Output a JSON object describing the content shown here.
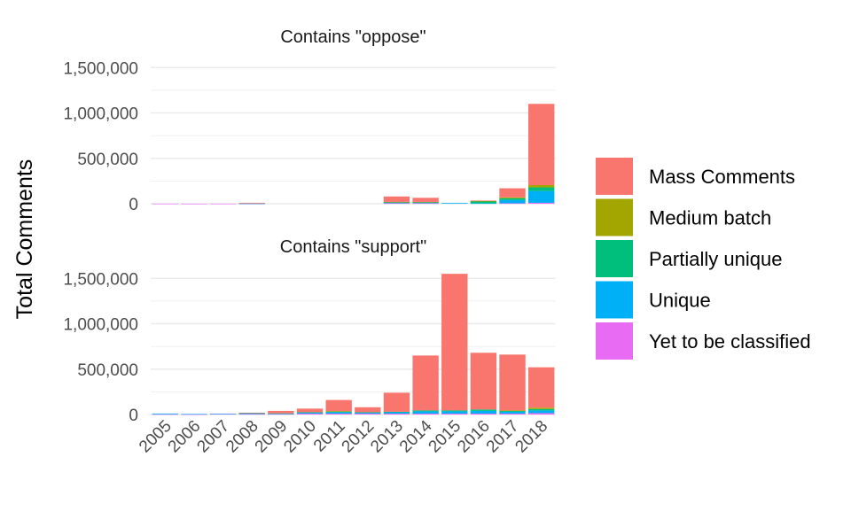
{
  "chart_data": [
    {
      "type": "bar",
      "stacked": true,
      "title": "Contains \"oppose\"",
      "ylabel": "Total Comments",
      "categories": [
        "2005",
        "2006",
        "2007",
        "2008",
        "2009",
        "2010",
        "2011",
        "2012",
        "2013",
        "2014",
        "2015",
        "2016",
        "2017",
        "2018"
      ],
      "ylim": [
        0,
        1600000
      ],
      "yticks": [
        0,
        500000,
        1000000,
        1500000
      ],
      "ytick_labels": [
        "0",
        "500,000",
        "1,000,000",
        "1,500,000"
      ],
      "series": [
        {
          "name": "Yet to be classified",
          "values": [
            1000,
            500,
            1000,
            1000,
            0,
            0,
            0,
            0,
            5000,
            5000,
            0,
            0,
            5000,
            10000
          ]
        },
        {
          "name": "Unique",
          "values": [
            0,
            0,
            0,
            2000,
            0,
            0,
            0,
            0,
            10000,
            10000,
            8000,
            5000,
            35000,
            130000
          ]
        },
        {
          "name": "Partially unique",
          "values": [
            0,
            0,
            0,
            0,
            0,
            0,
            0,
            0,
            3000,
            3000,
            0,
            20000,
            20000,
            40000
          ]
        },
        {
          "name": "Medium batch",
          "values": [
            0,
            0,
            0,
            0,
            0,
            0,
            0,
            0,
            2000,
            2000,
            0,
            5000,
            10000,
            25000
          ]
        },
        {
          "name": "Mass Comments",
          "values": [
            0,
            0,
            0,
            7000,
            0,
            0,
            0,
            0,
            60000,
            45000,
            0,
            5000,
            100000,
            895000
          ]
        }
      ]
    },
    {
      "type": "bar",
      "stacked": true,
      "title": "Contains \"support\"",
      "ylabel": "Total Comments",
      "categories": [
        "2005",
        "2006",
        "2007",
        "2008",
        "2009",
        "2010",
        "2011",
        "2012",
        "2013",
        "2014",
        "2015",
        "2016",
        "2017",
        "2018"
      ],
      "ylim": [
        0,
        1600000
      ],
      "yticks": [
        0,
        500000,
        1000000,
        1500000
      ],
      "ytick_labels": [
        "0",
        "500,000",
        "1,000,000",
        "1,500,000"
      ],
      "series": [
        {
          "name": "Yet to be classified",
          "values": [
            3000,
            2000,
            8000,
            5000,
            5000,
            10000,
            10000,
            10000,
            10000,
            10000,
            10000,
            10000,
            10000,
            15000
          ]
        },
        {
          "name": "Unique",
          "values": [
            8000,
            5000,
            2000,
            10000,
            5000,
            10000,
            15000,
            10000,
            15000,
            25000,
            25000,
            30000,
            20000,
            30000
          ]
        },
        {
          "name": "Partially unique",
          "values": [
            0,
            0,
            0,
            2000,
            3000,
            5000,
            10000,
            5000,
            5000,
            10000,
            10000,
            15000,
            10000,
            15000
          ]
        },
        {
          "name": "Medium batch",
          "values": [
            0,
            0,
            0,
            0,
            0,
            0,
            2000,
            0,
            0,
            0,
            0,
            0,
            5000,
            15000
          ]
        },
        {
          "name": "Mass Comments",
          "values": [
            0,
            0,
            0,
            3000,
            27000,
            40000,
            123000,
            55000,
            210000,
            605000,
            1505000,
            625000,
            615000,
            445000
          ]
        }
      ]
    }
  ],
  "legend": {
    "position": "right",
    "items": [
      {
        "label": "Mass Comments",
        "color": "#F8766D"
      },
      {
        "label": "Medium batch",
        "color": "#A3A500"
      },
      {
        "label": "Partially unique",
        "color": "#00BF7D"
      },
      {
        "label": "Unique",
        "color": "#00B0F6"
      },
      {
        "label": "Yet to be classified",
        "color": "#E76BF3"
      }
    ]
  },
  "colors": {
    "Yet to be classified": "#E76BF3",
    "Unique": "#00B0F6",
    "Partially unique": "#00BF7D",
    "Medium batch": "#A3A500",
    "Mass Comments": "#F8766D",
    "grid": "#ebebeb"
  }
}
